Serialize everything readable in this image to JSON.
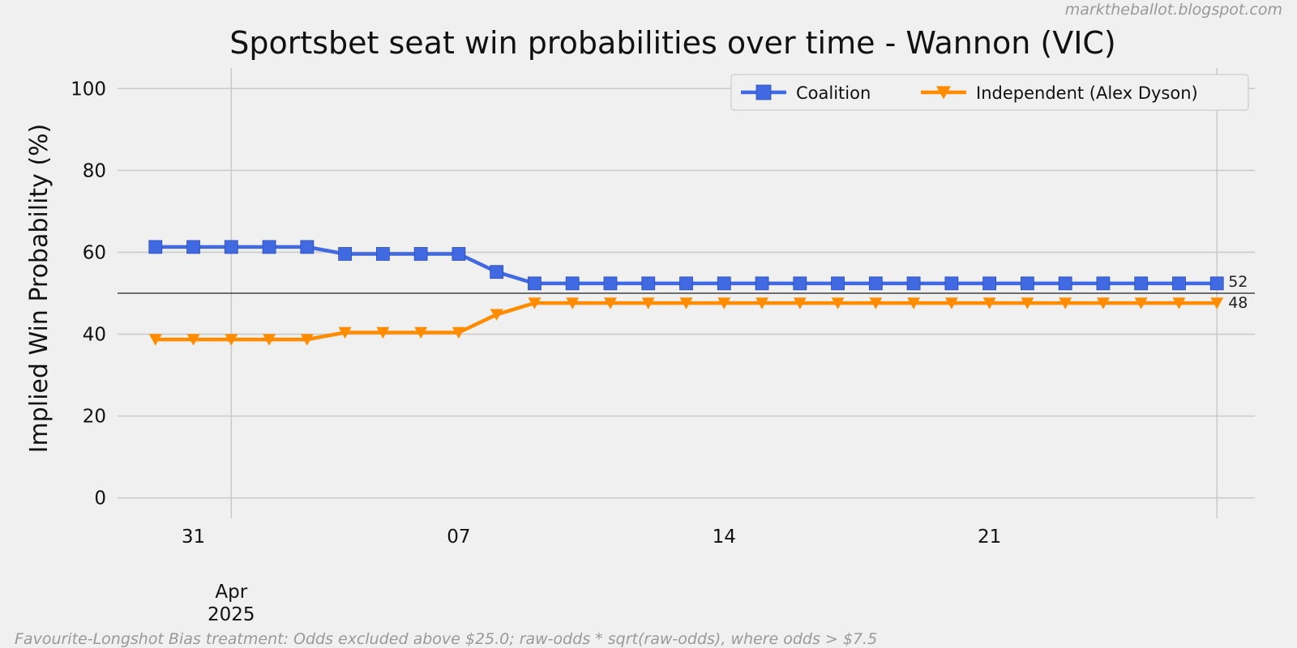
{
  "source_credit": "marktheballot.blogspot.com",
  "footnote": "Favourite-Longshot Bias treatment: Odds excluded above $25.0; raw-odds * sqrt(raw-odds), where odds > $7.5",
  "colors": {
    "background": "#f0f0f0",
    "coalition": "#4169e1",
    "independent": "#ff8c00",
    "grid": "#cbcbcb",
    "reference_line": "#222222"
  },
  "chart_data": {
    "type": "line",
    "title": "Sportsbet seat win probabilities over time - Wannon (VIC)",
    "xlabel": "",
    "ylabel": "Implied Win Probability (%)",
    "x": [
      "2025-03-30",
      "2025-03-31",
      "2025-04-01",
      "2025-04-02",
      "2025-04-03",
      "2025-04-04",
      "2025-04-05",
      "2025-04-06",
      "2025-04-07",
      "2025-04-08",
      "2025-04-09",
      "2025-04-10",
      "2025-04-11",
      "2025-04-12",
      "2025-04-13",
      "2025-04-14",
      "2025-04-15",
      "2025-04-16",
      "2025-04-17",
      "2025-04-18",
      "2025-04-19",
      "2025-04-20",
      "2025-04-21",
      "2025-04-22",
      "2025-04-23",
      "2025-04-24",
      "2025-04-25",
      "2025-04-26",
      "2025-04-27"
    ],
    "xlim": [
      "2025-03-29",
      "2025-04-28"
    ],
    "x_ticks": [
      {
        "date": "2025-03-31",
        "label": "31"
      },
      {
        "date": "2025-04-07",
        "label": "07"
      },
      {
        "date": "2025-04-14",
        "label": "14"
      },
      {
        "date": "2025-04-21",
        "label": "21"
      }
    ],
    "x_minor_ticks": [
      {
        "date": "2025-04-01",
        "label": "Apr\n2025"
      }
    ],
    "vertical_gridlines": [
      "2025-04-01",
      "2025-04-27"
    ],
    "y_ticks": [
      0,
      20,
      40,
      60,
      80,
      100
    ],
    "ylim": [
      -5,
      105
    ],
    "reference_line": 50,
    "grid": true,
    "legend_position": "top-right",
    "series": [
      {
        "name": "Coalition",
        "marker": "square",
        "color": "#4169e1",
        "values": [
          61.3,
          61.3,
          61.3,
          61.3,
          61.3,
          59.6,
          59.6,
          59.6,
          59.6,
          55.2,
          52.4,
          52.4,
          52.4,
          52.4,
          52.4,
          52.4,
          52.4,
          52.4,
          52.4,
          52.4,
          52.4,
          52.4,
          52.4,
          52.4,
          52.4,
          52.4,
          52.4,
          52.4,
          52.4
        ],
        "end_label": "52"
      },
      {
        "name": "Independent (Alex Dyson)",
        "marker": "triangle-down",
        "color": "#ff8c00",
        "values": [
          38.7,
          38.7,
          38.7,
          38.7,
          38.7,
          40.4,
          40.4,
          40.4,
          40.4,
          44.8,
          47.6,
          47.6,
          47.6,
          47.6,
          47.6,
          47.6,
          47.6,
          47.6,
          47.6,
          47.6,
          47.6,
          47.6,
          47.6,
          47.6,
          47.6,
          47.6,
          47.6,
          47.6,
          47.6
        ],
        "end_label": "48"
      }
    ]
  }
}
